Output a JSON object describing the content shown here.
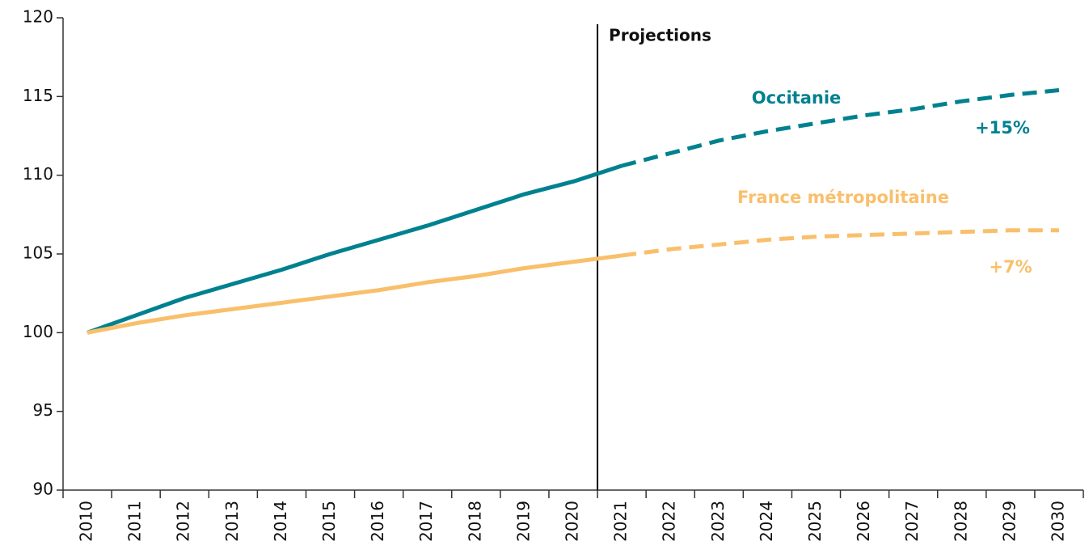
{
  "chart_data": {
    "type": "line",
    "categories": [
      "2010",
      "2011",
      "2012",
      "2013",
      "2014",
      "2015",
      "2016",
      "2017",
      "2018",
      "2019",
      "2020",
      "2021",
      "2022",
      "2023",
      "2024",
      "2025",
      "2026",
      "2027",
      "2028",
      "2029",
      "2030"
    ],
    "series": [
      {
        "name": "Occitanie",
        "color": "#00818f",
        "values": [
          100,
          101.1,
          102.2,
          103.1,
          104.0,
          105.0,
          105.9,
          106.8,
          107.8,
          108.8,
          109.6,
          110.6,
          111.4,
          112.2,
          112.8,
          113.3,
          113.8,
          114.2,
          114.7,
          115.1,
          115.4
        ]
      },
      {
        "name": "France métropolitaine",
        "color": "#f9bf6b",
        "values": [
          100,
          100.6,
          101.1,
          101.5,
          101.9,
          102.3,
          102.7,
          103.2,
          103.6,
          104.1,
          104.5,
          104.9,
          105.3,
          105.6,
          105.9,
          106.1,
          106.2,
          106.3,
          106.4,
          106.5,
          106.5
        ]
      }
    ],
    "dashed_from_index": 11,
    "projection_label": "Projections",
    "annotations": [
      "+15%",
      "+7%"
    ],
    "ylim": [
      90,
      120
    ],
    "yticks": [
      90,
      95,
      100,
      105,
      110,
      115,
      120
    ],
    "grid": false
  }
}
